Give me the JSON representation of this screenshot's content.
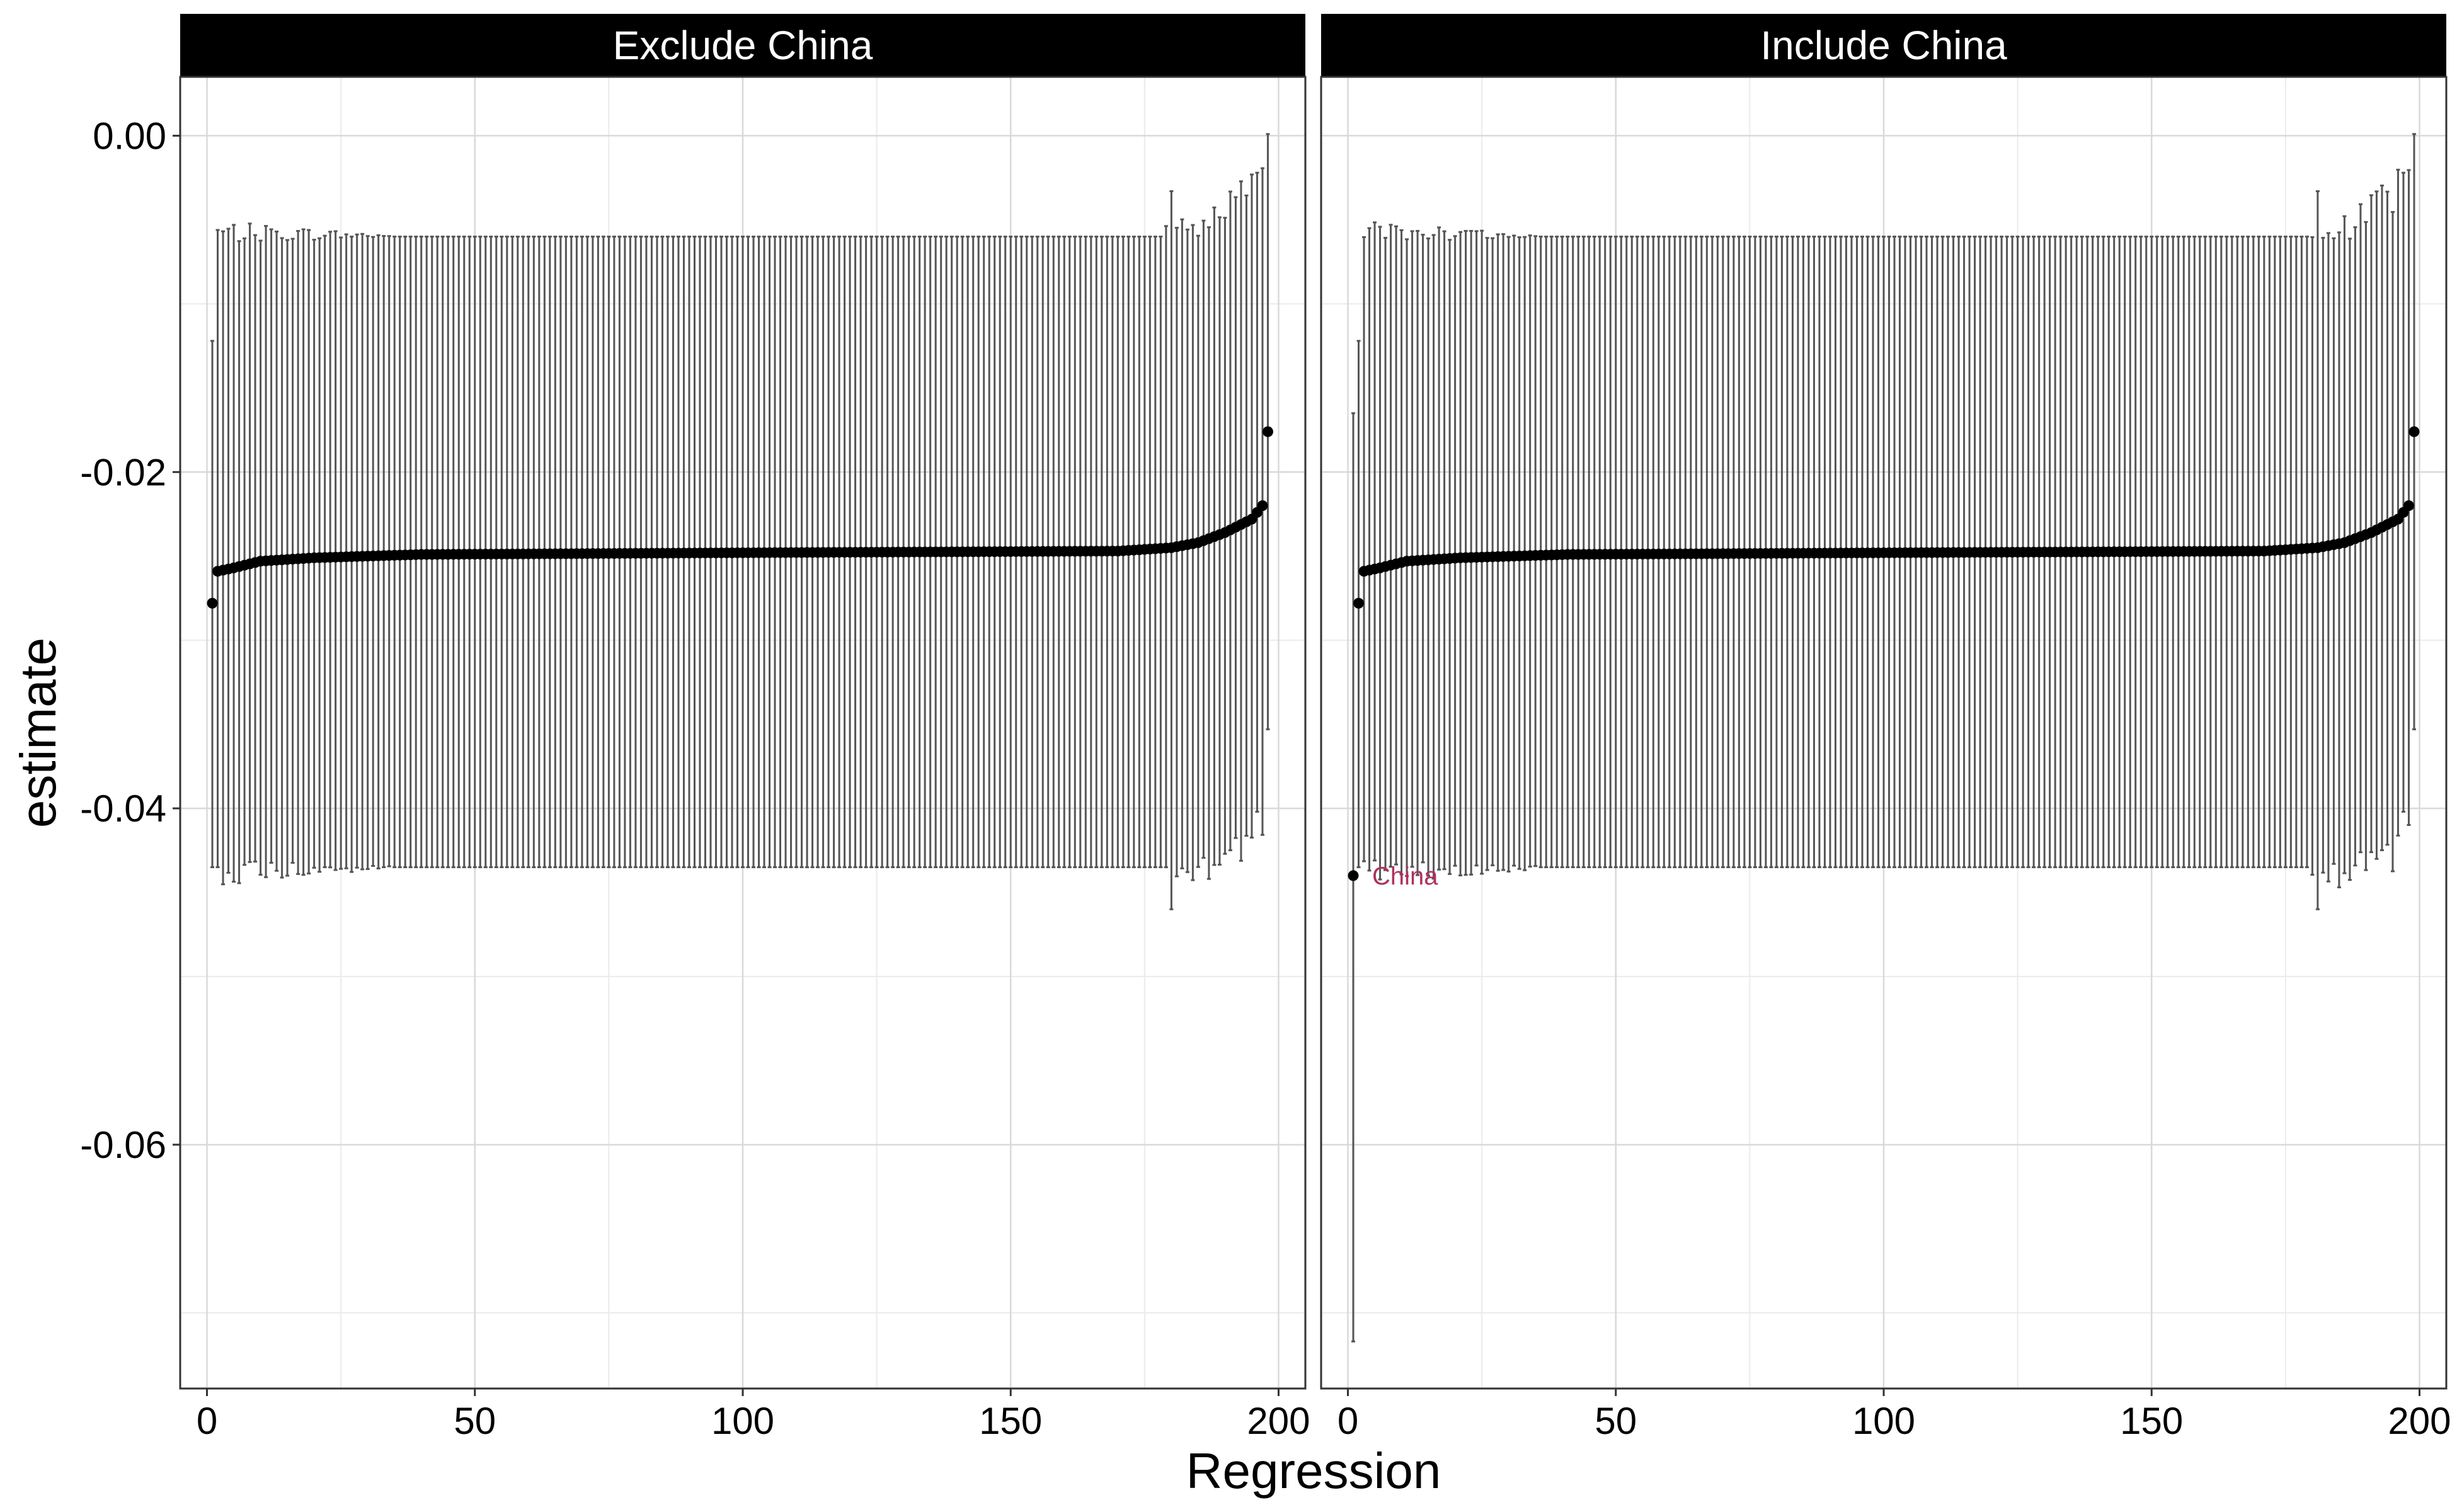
{
  "chart_data": {
    "type": "scatter",
    "geometry": "point-with-errorbars",
    "xlabel": "Regression",
    "ylabel": "estimate",
    "xlim": [
      -5,
      205
    ],
    "ylim": [
      -0.0745,
      0.0035
    ],
    "x_ticks": [
      0,
      50,
      100,
      150,
      200
    ],
    "x_tick_labels": [
      "0",
      "50",
      "100",
      "150",
      "200"
    ],
    "y_ticks": [
      0.0,
      -0.02,
      -0.04,
      -0.06
    ],
    "y_tick_labels": [
      "0.00",
      "-0.02",
      "-0.04",
      "-0.06"
    ],
    "grid": true,
    "legend": "none",
    "colors": {
      "point": "#000000",
      "errorbar": "#555555",
      "strip_bg": "#000000",
      "annotation": "#b03060",
      "grid": "#d9d9d9"
    },
    "panels": [
      {
        "name": "Exclude China",
        "n": 198,
        "first_point": {
          "x": 1,
          "estimate": -0.0278,
          "lower": -0.0435,
          "upper": -0.0122
        },
        "estimate_profile": [
          [
            2,
            -0.0259
          ],
          [
            5,
            -0.0257
          ],
          [
            10,
            -0.0253
          ],
          [
            20,
            -0.0251
          ],
          [
            40,
            -0.0249
          ],
          [
            100,
            -0.0248
          ],
          [
            170,
            -0.0247
          ],
          [
            180,
            -0.0245
          ],
          [
            185,
            -0.0242
          ],
          [
            190,
            -0.0236
          ],
          [
            195,
            -0.0228
          ],
          [
            197,
            -0.022
          ]
        ],
        "last_point": {
          "x": 198,
          "estimate": -0.0176,
          "lower": -0.0353,
          "upper": 0.0001
        },
        "typical_lower": -0.0435,
        "typical_upper": -0.006,
        "annotation": null
      },
      {
        "name": "Include China",
        "n": 199,
        "first_point": {
          "x": 1,
          "estimate": -0.044,
          "lower": -0.0717,
          "upper": -0.0165
        },
        "second_point": {
          "x": 2,
          "estimate": -0.0278,
          "lower": -0.0435,
          "upper": -0.0122
        },
        "estimate_profile": [
          [
            3,
            -0.0259
          ],
          [
            6,
            -0.0257
          ],
          [
            11,
            -0.0253
          ],
          [
            21,
            -0.0251
          ],
          [
            41,
            -0.0249
          ],
          [
            101,
            -0.0248
          ],
          [
            171,
            -0.0247
          ],
          [
            181,
            -0.0245
          ],
          [
            186,
            -0.0242
          ],
          [
            191,
            -0.0236
          ],
          [
            196,
            -0.0228
          ],
          [
            198,
            -0.022
          ]
        ],
        "last_point": {
          "x": 199,
          "estimate": -0.0176,
          "lower": -0.0353,
          "upper": 0.0001
        },
        "typical_lower": -0.0435,
        "typical_upper": -0.006,
        "annotation": {
          "text": "China",
          "x": 1,
          "y": -0.044
        }
      }
    ]
  }
}
